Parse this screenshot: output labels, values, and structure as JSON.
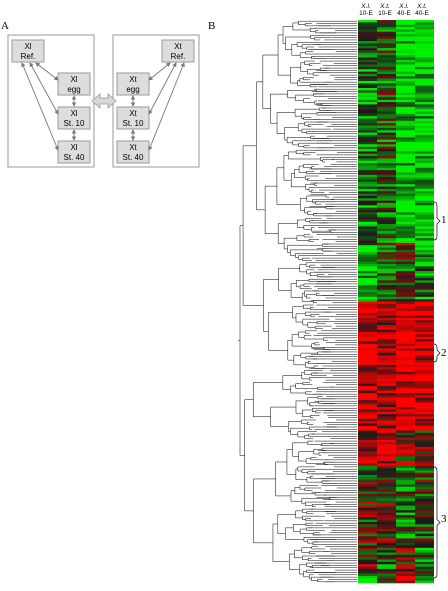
{
  "panel_a": {
    "label": "A",
    "xl": {
      "ref": [
        "Xl",
        "Ref."
      ],
      "egg": [
        "Xl",
        "egg"
      ],
      "st10": [
        "Xl",
        "St. 10"
      ],
      "st40": [
        "Xl",
        "St. 40"
      ]
    },
    "xt": {
      "ref": [
        "Xt",
        "Ref."
      ],
      "egg": [
        "Xt",
        "egg"
      ],
      "st10": [
        "Xt",
        "St. 10"
      ],
      "st40": [
        "Xt",
        "St. 40"
      ]
    }
  },
  "panel_b": {
    "label": "B",
    "columns": [
      {
        "species": "X.l.",
        "stage": "10-E"
      },
      {
        "species": "X.t.",
        "stage": "10-E"
      },
      {
        "species": "X.l.",
        "stage": "40-E"
      },
      {
        "species": "X.t.",
        "stage": "40-E"
      }
    ],
    "clusters": [
      "1",
      "2",
      "3"
    ],
    "colors": {
      "up": "#ff1a1a",
      "down": "#22dd22",
      "neutral": "#1a1a1a",
      "tree": "#000000"
    }
  }
}
